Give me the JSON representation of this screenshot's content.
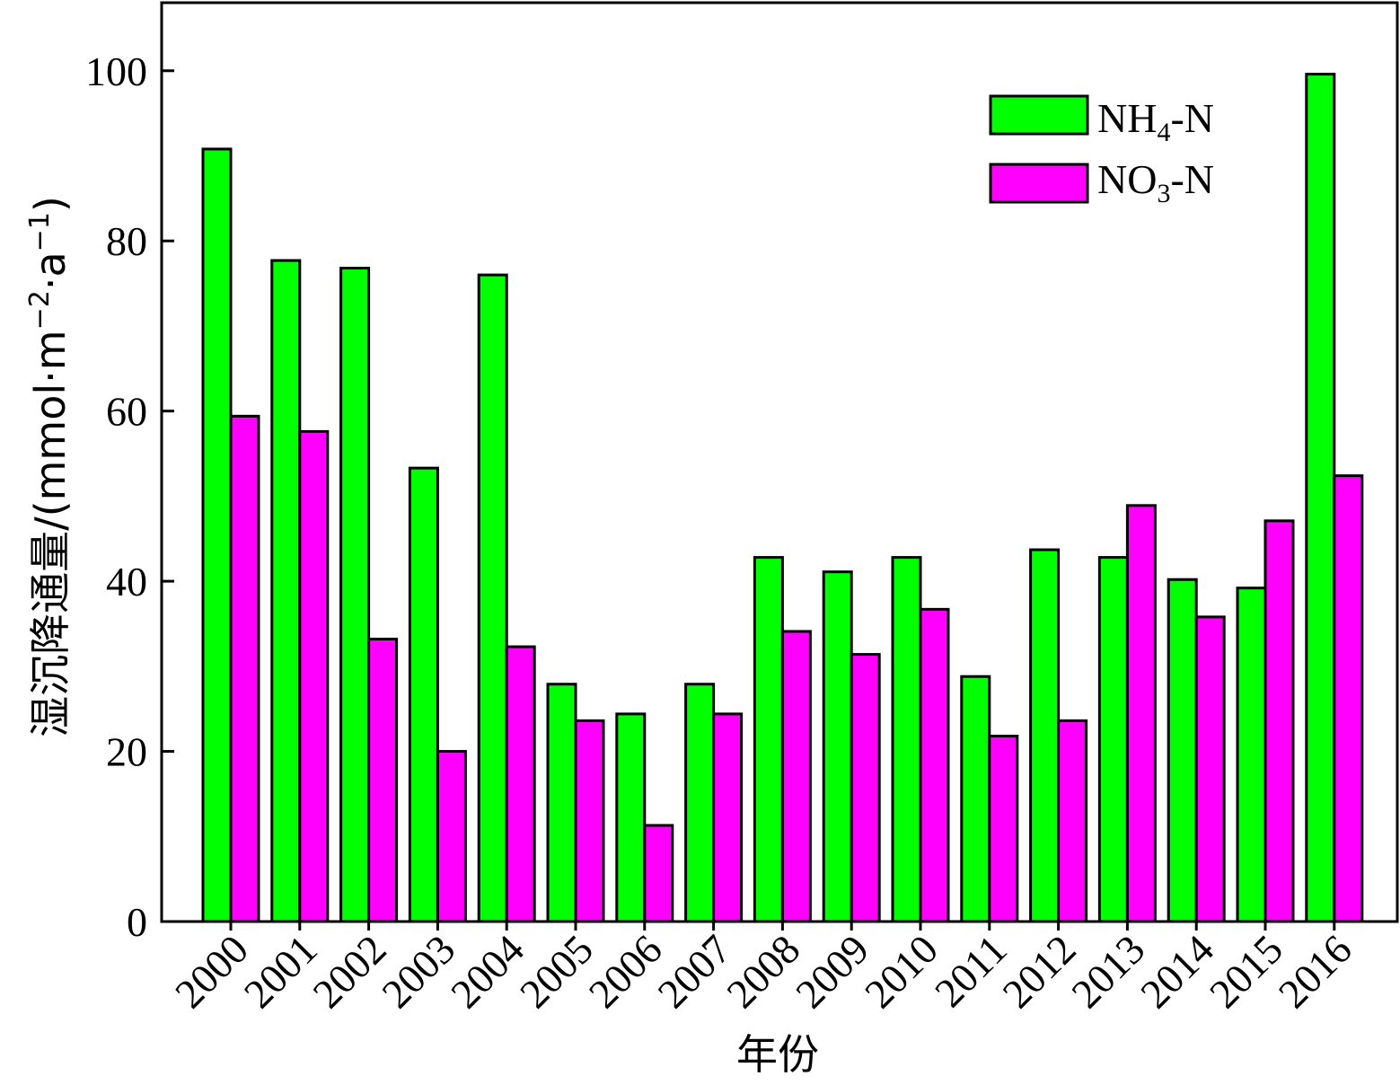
{
  "chart_data": {
    "type": "bar",
    "xlabel": "年份",
    "ylabel": {
      "prefix": "湿沉降通量/(mmol·m",
      "exp1": "−2",
      "mid": "·a",
      "exp2": "−1",
      "suffix": ")"
    },
    "ylim": [
      0,
      108
    ],
    "yticks": [
      0,
      20,
      40,
      60,
      80,
      100
    ],
    "categories": [
      "2000",
      "2001",
      "2002",
      "2003",
      "2004",
      "2005",
      "2006",
      "2007",
      "2008",
      "2009",
      "2010",
      "2011",
      "2012",
      "2013",
      "2014",
      "2015",
      "2016"
    ],
    "series": [
      {
        "key": "nh4",
        "legend": {
          "main": "NH",
          "sub": "4",
          "tail": "-N"
        },
        "color": "#00ff00",
        "values": [
          90.8,
          77.7,
          76.8,
          53.3,
          76.0,
          27.9,
          24.4,
          27.9,
          42.8,
          41.1,
          42.8,
          28.8,
          43.7,
          42.8,
          40.2,
          39.2,
          99.6
        ]
      },
      {
        "key": "no3",
        "legend": {
          "main": "NO",
          "sub": "3",
          "tail": "-N"
        },
        "color": "#ff00ff",
        "values": [
          59.4,
          57.6,
          33.2,
          20.0,
          32.3,
          23.6,
          11.3,
          24.4,
          34.1,
          31.4,
          36.7,
          21.8,
          23.6,
          48.9,
          35.8,
          47.1,
          52.4
        ]
      }
    ],
    "legend_position": "top-right",
    "grid": false
  }
}
